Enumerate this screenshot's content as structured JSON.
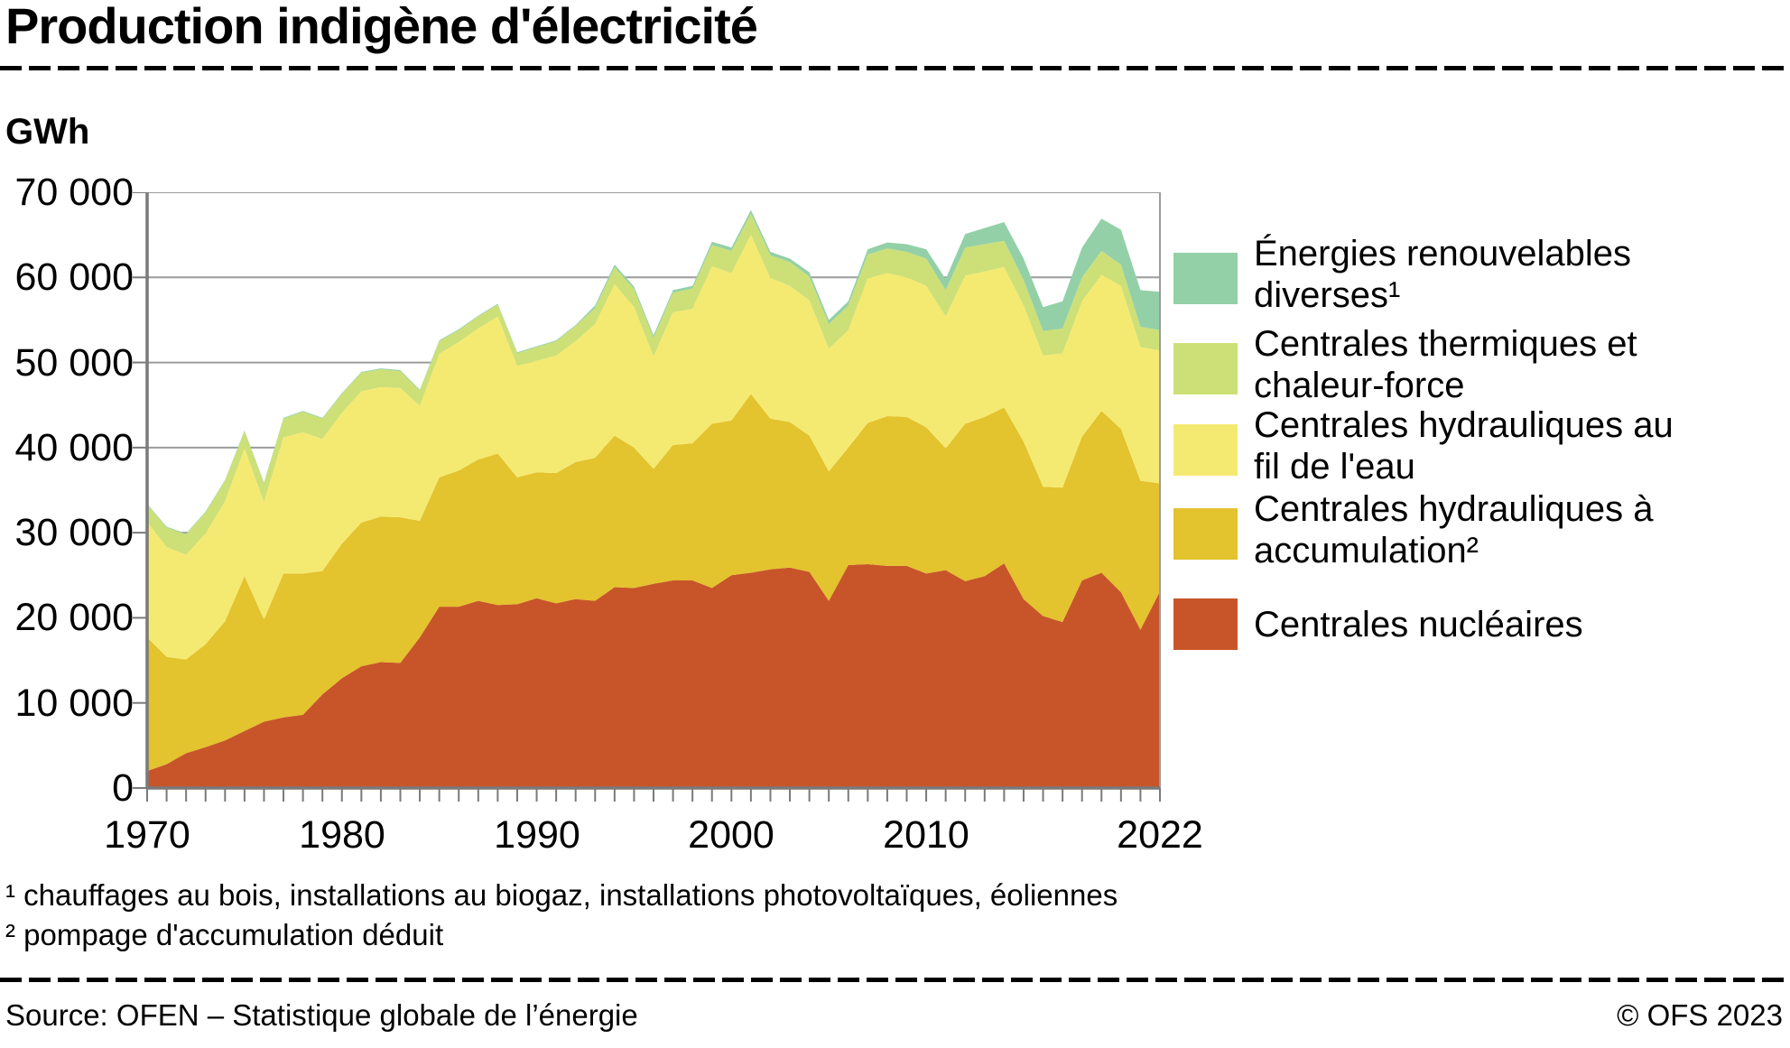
{
  "header": {
    "title": "Production indigène d'électricité",
    "unit": "GWh"
  },
  "legend": {
    "items": [
      {
        "color": "#93d0a7",
        "line1": "Énergies renouvelables",
        "line2": "diverses¹"
      },
      {
        "color": "#cde077",
        "line1": "Centrales thermiques et",
        "line2": "chaleur-force"
      },
      {
        "color": "#f5ea71",
        "line1": "Centrales hydrauliques au",
        "line2": "fil de l'eau"
      },
      {
        "color": "#e3c32e",
        "line1": "Centrales hydrauliques à",
        "line2": "accumulation²"
      },
      {
        "color": "#c85529",
        "line1": "Centrales nucléaires",
        "line2": ""
      }
    ]
  },
  "footnotes": {
    "line1": "¹ chauffages au bois, installations au biogaz, installations photovoltaïques, éoliennes",
    "line2": "² pompage d'accumulation déduit"
  },
  "footer": {
    "source": "Source: OFEN – Statistique globale de l’énergie",
    "copyright": "© OFS 2023"
  },
  "chart_data": {
    "type": "area",
    "stacked": true,
    "title": "Production indigène d'électricité",
    "ylabel": "GWh",
    "ylim": [
      0,
      70000
    ],
    "grid_step": 10000,
    "grid_on": true,
    "grid_color": "#9c9c9c",
    "axis_color": "#7a7a7a",
    "legend_position": "right",
    "y_tick_labels": [
      "70 000",
      "60 000",
      "50 000",
      "40 000",
      "30 000",
      "20 000",
      "10 000",
      "0"
    ],
    "x_tick_labels": [
      "1970",
      "1980",
      "1990",
      "2000",
      "2010",
      "2022"
    ],
    "x_tick_years": [
      1970,
      1980,
      1990,
      2000,
      2010,
      2022
    ],
    "years": [
      1970,
      1971,
      1972,
      1973,
      1974,
      1975,
      1976,
      1977,
      1978,
      1979,
      1980,
      1981,
      1982,
      1983,
      1984,
      1985,
      1986,
      1987,
      1988,
      1989,
      1990,
      1991,
      1992,
      1993,
      1994,
      1995,
      1996,
      1997,
      1998,
      1999,
      2000,
      2001,
      2002,
      2003,
      2004,
      2005,
      2006,
      2007,
      2008,
      2009,
      2010,
      2011,
      2012,
      2013,
      2014,
      2015,
      2016,
      2017,
      2018,
      2019,
      2020,
      2021,
      2022
    ],
    "series": [
      {
        "name": "Centrales nucléaires",
        "color": "#c85529",
        "values": [
          2000,
          2800,
          4100,
          4800,
          5600,
          6700,
          7800,
          8300,
          8600,
          11000,
          12900,
          14300,
          14800,
          14700,
          17700,
          21300,
          21300,
          22000,
          21500,
          21600,
          22300,
          21700,
          22200,
          22000,
          23600,
          23500,
          24000,
          24400,
          24400,
          23500,
          25000,
          25300,
          25700,
          25900,
          25400,
          22000,
          26200,
          26300,
          26100,
          26100,
          25200,
          25600,
          24300,
          24900,
          26400,
          22200,
          20200,
          19500,
          24400,
          25300,
          23000,
          18600,
          23100
        ]
      },
      {
        "name": "Centrales hydrauliques à accumulation (pompage déduit)",
        "color": "#e3c32e",
        "values": [
          15700,
          12600,
          11000,
          12100,
          14000,
          18200,
          12000,
          16900,
          16600,
          14500,
          15800,
          16900,
          17100,
          17100,
          13700,
          15200,
          16000,
          16600,
          17800,
          14900,
          14800,
          15300,
          16100,
          16800,
          17800,
          16500,
          13500,
          15900,
          16100,
          19300,
          18200,
          21000,
          17700,
          17100,
          16000,
          15200,
          13800,
          16600,
          17600,
          17500,
          17200,
          14300,
          18500,
          18700,
          18300,
          18500,
          15200,
          15800,
          16900,
          19000,
          19200,
          17500,
          12700
        ]
      },
      {
        "name": "Centrales hydrauliques au fil de l'eau",
        "color": "#f5ea71",
        "values": [
          13600,
          12900,
          12300,
          13000,
          14100,
          15000,
          13800,
          16000,
          16600,
          15500,
          15400,
          15400,
          15200,
          15200,
          13500,
          14500,
          15100,
          15400,
          16100,
          13100,
          13100,
          13800,
          14200,
          15700,
          17800,
          16500,
          13200,
          15600,
          15800,
          18500,
          17300,
          18700,
          16500,
          16000,
          15900,
          14400,
          13800,
          17000,
          16800,
          16400,
          16600,
          15500,
          17400,
          17100,
          16500,
          16000,
          15400,
          15800,
          15900,
          16000,
          16800,
          15700,
          15600
        ]
      },
      {
        "name": "Centrales thermiques et chaleur-force",
        "color": "#cde077",
        "values": [
          2000,
          2300,
          2400,
          2500,
          2400,
          2000,
          2200,
          2200,
          2400,
          2400,
          2200,
          2200,
          2100,
          2000,
          1800,
          1500,
          1400,
          1400,
          1400,
          1500,
          1600,
          1700,
          1800,
          1900,
          2000,
          2100,
          2200,
          2300,
          2400,
          2500,
          2600,
          2500,
          2700,
          2800,
          2800,
          2900,
          2900,
          2800,
          2900,
          3000,
          3200,
          3100,
          3300,
          3200,
          3100,
          3000,
          2900,
          2900,
          2800,
          2800,
          2500,
          2400,
          2400
        ]
      },
      {
        "name": "Énergies renouvelables diverses",
        "color": "#93d0a7",
        "values": [
          100,
          100,
          100,
          100,
          100,
          100,
          100,
          100,
          100,
          100,
          100,
          100,
          100,
          100,
          100,
          100,
          100,
          100,
          100,
          100,
          100,
          100,
          100,
          300,
          300,
          300,
          300,
          300,
          300,
          400,
          400,
          400,
          400,
          400,
          500,
          500,
          500,
          600,
          700,
          900,
          1100,
          1300,
          1600,
          1900,
          2200,
          2500,
          2800,
          3200,
          3500,
          3800,
          4100,
          4300,
          4500
        ]
      }
    ]
  }
}
